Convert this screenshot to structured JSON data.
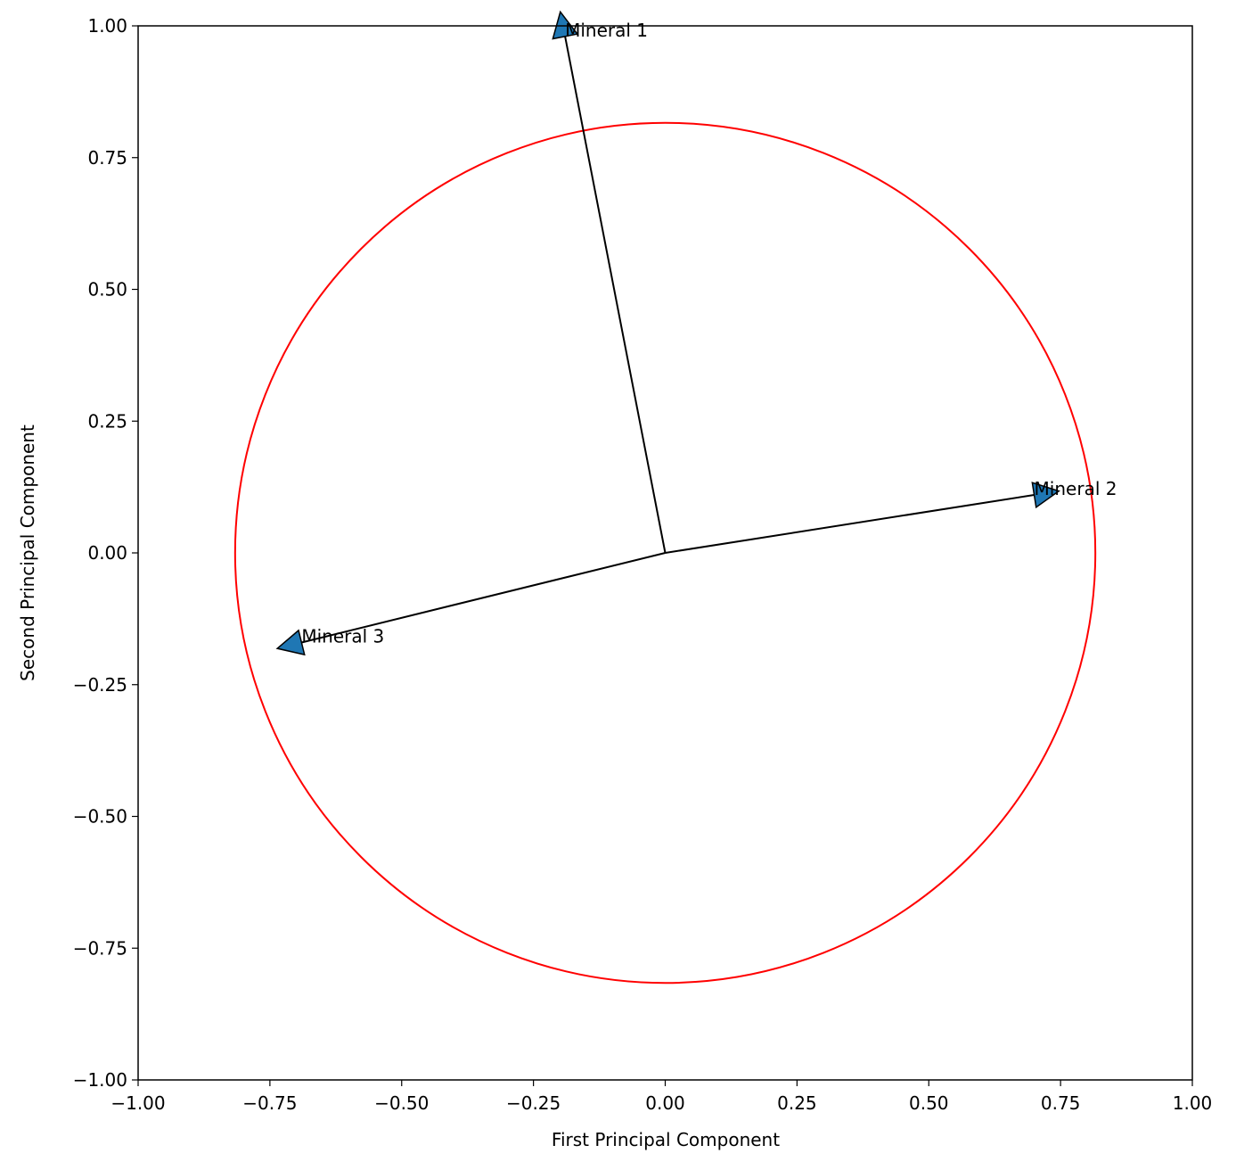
{
  "chart_data": {
    "type": "biplot",
    "xlabel": "First Principal Component",
    "ylabel": "Second Principal Component",
    "xlim": [
      -1,
      1
    ],
    "ylim": [
      -1,
      1
    ],
    "xticks": [
      {
        "value": -1,
        "label": "−1.00"
      },
      {
        "value": -0.75,
        "label": "−0.75"
      },
      {
        "value": -0.5,
        "label": "−0.50"
      },
      {
        "value": -0.25,
        "label": "−0.25"
      },
      {
        "value": 0,
        "label": "0.00"
      },
      0.25,
      {
        "value": 0.5,
        "label": "0.50"
      },
      0.75,
      {
        "value": 1,
        "label": "1.00"
      }
    ],
    "yticks": [
      {
        "value": -1,
        "label": "−1.00"
      },
      {
        "value": -0.75,
        "label": "−0.75"
      },
      {
        "value": -0.5,
        "label": "−0.50"
      },
      {
        "value": -0.25,
        "label": "−0.25"
      },
      {
        "value": 0,
        "label": "0.00"
      },
      0.25,
      {
        "value": 0.5,
        "label": "0.50"
      },
      0.75,
      {
        "value": 1,
        "label": "1.00"
      }
    ],
    "vectors": [
      {
        "name": "Mineral 1",
        "x": -0.19,
        "y": 0.98
      },
      {
        "name": "Mineral 2",
        "x": 0.7,
        "y": 0.11
      },
      {
        "name": "Mineral 3",
        "x": -0.69,
        "y": -0.17
      }
    ],
    "arrow_color": "#1f77b4",
    "circle": {
      "radius": 0.816,
      "color": "red"
    }
  }
}
